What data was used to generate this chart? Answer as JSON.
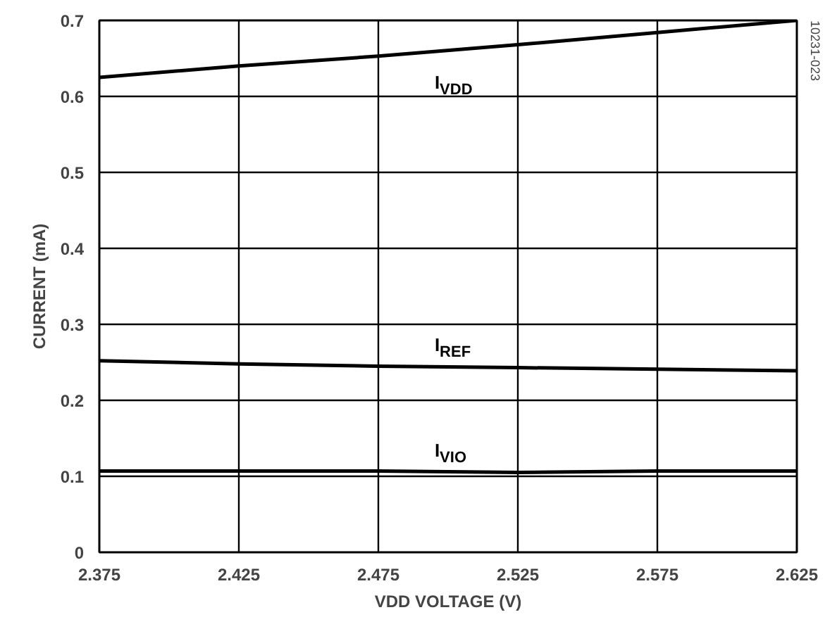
{
  "chart_data": {
    "type": "line",
    "xlabel": "VDD VOLTAGE (V)",
    "ylabel": "CURRENT (mA)",
    "x": [
      2.375,
      2.425,
      2.475,
      2.525,
      2.575,
      2.625
    ],
    "series": [
      {
        "name": "I$_{VDD}$",
        "color": "#000000",
        "values": [
          0.625,
          0.64,
          0.653,
          0.668,
          0.684,
          0.7
        ]
      },
      {
        "name": "I$_{REF}$",
        "color": "#000000",
        "values": [
          0.252,
          0.248,
          0.245,
          0.243,
          0.241,
          0.239
        ]
      },
      {
        "name": "I$_{VIO}$",
        "color": "#000000",
        "values": [
          0.107,
          0.107,
          0.107,
          0.105,
          0.107,
          0.107
        ]
      }
    ],
    "xlim": [
      2.375,
      2.625
    ],
    "xticks": [
      2.375,
      2.425,
      2.475,
      2.525,
      2.575,
      2.625
    ],
    "ylim": [
      0,
      0.7
    ],
    "yticks": [
      0,
      0.1,
      0.2,
      0.3,
      0.4,
      0.5,
      0.6,
      0.7
    ],
    "grid": true,
    "marker": "none",
    "line_style": "solid",
    "annotations": [
      "10231-023"
    ]
  }
}
